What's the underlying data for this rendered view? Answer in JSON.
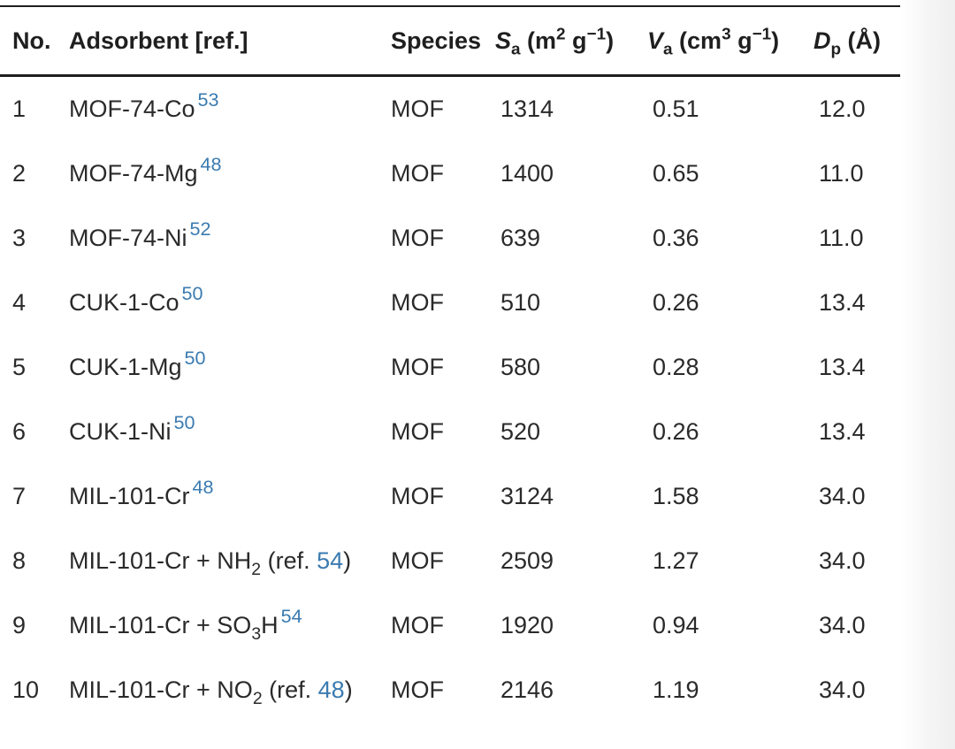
{
  "headers": {
    "no": "No.",
    "adsorbent": "Adsorbent [ref.]",
    "species": "Species",
    "sa_symbol": "S",
    "sa_sub": "a",
    "sa_unit_open": " (m",
    "sa_unit_sup1": "2",
    "sa_unit_mid": " g",
    "sa_unit_sup2": "−1",
    "sa_unit_close": ")",
    "va_symbol": "V",
    "va_sub": "a",
    "va_unit_open": " (cm",
    "va_unit_sup1": "3",
    "va_unit_mid": " g",
    "va_unit_sup2": "−1",
    "va_unit_close": ")",
    "dp_symbol": "D",
    "dp_sub": "p",
    "dp_unit": " (Å)"
  },
  "rows": [
    {
      "no": "1",
      "name": "MOF-74-Co",
      "ref": "53",
      "species": "MOF",
      "sa": "1314",
      "va": "0.51",
      "dp": "12.0"
    },
    {
      "no": "2",
      "name": "MOF-74-Mg",
      "ref": "48",
      "species": "MOF",
      "sa": "1400",
      "va": "0.65",
      "dp": "11.0"
    },
    {
      "no": "3",
      "name": "MOF-74-Ni",
      "ref": "52",
      "species": "MOF",
      "sa": "639",
      "va": "0.36",
      "dp": "11.0"
    },
    {
      "no": "4",
      "name": "CUK-1-Co",
      "ref": "50",
      "species": "MOF",
      "sa": "510",
      "va": "0.26",
      "dp": "13.4"
    },
    {
      "no": "5",
      "name": "CUK-1-Mg",
      "ref": "50",
      "species": "MOF",
      "sa": "580",
      "va": "0.28",
      "dp": "13.4"
    },
    {
      "no": "6",
      "name": "CUK-1-Ni",
      "ref": "50",
      "species": "MOF",
      "sa": "520",
      "va": "0.26",
      "dp": "13.4"
    },
    {
      "no": "7",
      "name": "MIL-101-Cr",
      "ref": "48",
      "species": "MOF",
      "sa": "3124",
      "va": "1.58",
      "dp": "34.0"
    },
    {
      "no": "8",
      "name_pre": "MIL-101-Cr + NH",
      "name_sub": "2",
      "name_post": " (ref. ",
      "ref": "54",
      "name_close": ")",
      "species": "MOF",
      "sa": "2509",
      "va": "1.27",
      "dp": "34.0"
    },
    {
      "no": "9",
      "name_pre": "MIL-101-Cr + SO",
      "name_sub": "3",
      "name_post": "H",
      "ref": "54",
      "species": "MOF",
      "sa": "1920",
      "va": "0.94",
      "dp": "34.0"
    },
    {
      "no": "10",
      "name_pre": "MIL-101-Cr + NO",
      "name_sub": "2",
      "name_post": " (ref. ",
      "ref": "48",
      "name_close": ")",
      "species": "MOF",
      "sa": "2146",
      "va": "1.19",
      "dp": "34.0"
    }
  ]
}
